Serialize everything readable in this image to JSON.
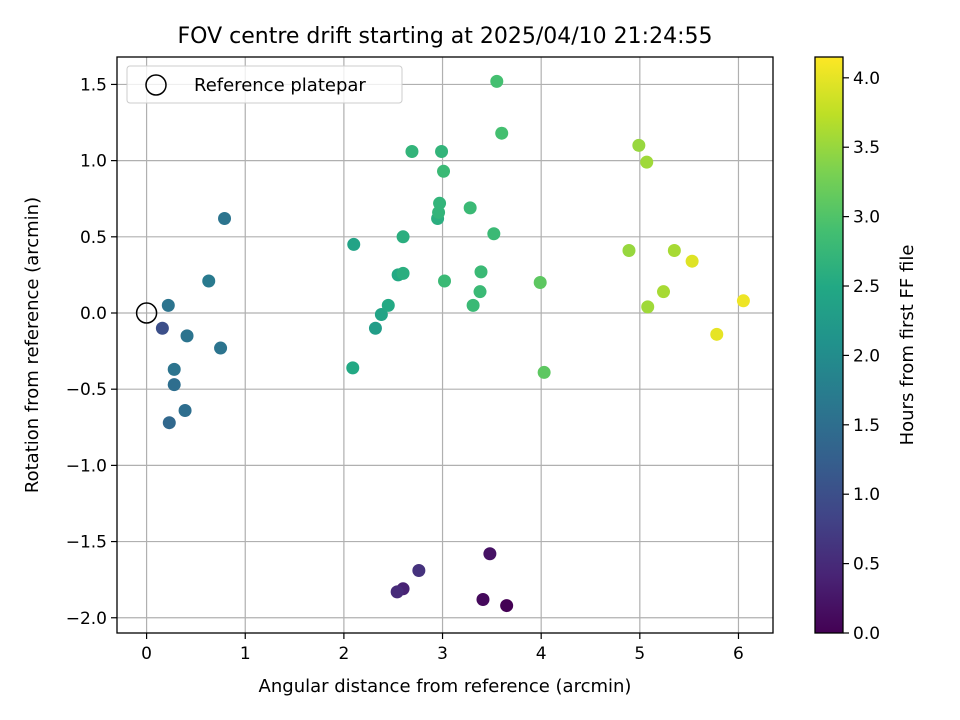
{
  "chart_data": {
    "type": "scatter",
    "title": "FOV centre drift starting at 2025/04/10 21:24:55",
    "xlabel": "Angular distance from reference (arcmin)",
    "ylabel": "Rotation from reference (arcmin)",
    "xlim": [
      -0.3,
      6.35
    ],
    "ylim": [
      -2.1,
      1.68
    ],
    "x_ticks": [
      0,
      1,
      2,
      3,
      4,
      5,
      6
    ],
    "x_tick_labels": [
      "0",
      "1",
      "2",
      "3",
      "4",
      "5",
      "6"
    ],
    "y_ticks": [
      1.5,
      1.0,
      0.5,
      0.0,
      -0.5,
      -1.0,
      -1.5,
      -2.0
    ],
    "y_tick_labels": [
      "1.5",
      "1.0",
      "0.5",
      "0.0",
      "−0.5",
      "−1.0",
      "−1.5",
      "−2.0"
    ],
    "grid": true,
    "legend": {
      "location": "upper left",
      "entries": [
        {
          "label": "Reference platepar",
          "marker": "open-circle",
          "x": 0,
          "y": 0
        }
      ]
    },
    "colorbar": {
      "label": "Hours from first FF file",
      "colormap": "viridis",
      "range": [
        0,
        4.15
      ],
      "ticks": [
        0.0,
        0.5,
        1.0,
        1.5,
        2.0,
        2.5,
        3.0,
        3.5,
        4.0
      ],
      "tick_labels": [
        "0.0",
        "0.5",
        "1.0",
        "1.5",
        "2.0",
        "2.5",
        "3.0",
        "3.5",
        "4.0"
      ]
    },
    "points": [
      {
        "x": 3.65,
        "y": -1.92,
        "hours": 0.0
      },
      {
        "x": 3.41,
        "y": -1.88,
        "hours": 0.1
      },
      {
        "x": 3.48,
        "y": -1.58,
        "hours": 0.2
      },
      {
        "x": 2.6,
        "y": -1.81,
        "hours": 0.4
      },
      {
        "x": 2.54,
        "y": -1.83,
        "hours": 0.5
      },
      {
        "x": 2.76,
        "y": -1.69,
        "hours": 0.6
      },
      {
        "x": 0.16,
        "y": -0.1,
        "hours": 1.0
      },
      {
        "x": 0.23,
        "y": -0.72,
        "hours": 1.4
      },
      {
        "x": 0.28,
        "y": -0.47,
        "hours": 1.5
      },
      {
        "x": 0.39,
        "y": -0.64,
        "hours": 1.5
      },
      {
        "x": 0.22,
        "y": 0.05,
        "hours": 1.6
      },
      {
        "x": 0.28,
        "y": -0.37,
        "hours": 1.6
      },
      {
        "x": 0.41,
        "y": -0.15,
        "hours": 1.6
      },
      {
        "x": 0.75,
        "y": -0.23,
        "hours": 1.6
      },
      {
        "x": 0.79,
        "y": 0.62,
        "hours": 1.6
      },
      {
        "x": 0.63,
        "y": 0.21,
        "hours": 1.7
      },
      {
        "x": 2.32,
        "y": -0.1,
        "hours": 2.3
      },
      {
        "x": 2.38,
        "y": -0.01,
        "hours": 2.4
      },
      {
        "x": 2.1,
        "y": 0.45,
        "hours": 2.4
      },
      {
        "x": 2.09,
        "y": -0.36,
        "hours": 2.5
      },
      {
        "x": 2.45,
        "y": 0.05,
        "hours": 2.5
      },
      {
        "x": 2.55,
        "y": 0.25,
        "hours": 2.5
      },
      {
        "x": 2.6,
        "y": 0.26,
        "hours": 2.6
      },
      {
        "x": 2.6,
        "y": 0.5,
        "hours": 2.6
      },
      {
        "x": 2.95,
        "y": 0.62,
        "hours": 2.6
      },
      {
        "x": 2.96,
        "y": 0.66,
        "hours": 2.7
      },
      {
        "x": 2.97,
        "y": 0.72,
        "hours": 2.7
      },
      {
        "x": 2.69,
        "y": 1.06,
        "hours": 2.7
      },
      {
        "x": 2.99,
        "y": 1.06,
        "hours": 2.7
      },
      {
        "x": 3.01,
        "y": 0.93,
        "hours": 2.8
      },
      {
        "x": 3.02,
        "y": 0.21,
        "hours": 2.8
      },
      {
        "x": 3.28,
        "y": 0.69,
        "hours": 2.8
      },
      {
        "x": 3.31,
        "y": 0.05,
        "hours": 2.8
      },
      {
        "x": 3.38,
        "y": 0.14,
        "hours": 2.8
      },
      {
        "x": 3.39,
        "y": 0.27,
        "hours": 2.8
      },
      {
        "x": 3.52,
        "y": 0.52,
        "hours": 2.8
      },
      {
        "x": 3.55,
        "y": 1.52,
        "hours": 2.9
      },
      {
        "x": 3.6,
        "y": 1.18,
        "hours": 2.9
      },
      {
        "x": 3.99,
        "y": 0.2,
        "hours": 3.1
      },
      {
        "x": 4.03,
        "y": -0.39,
        "hours": 3.1
      },
      {
        "x": 4.89,
        "y": 0.41,
        "hours": 3.5
      },
      {
        "x": 4.99,
        "y": 1.1,
        "hours": 3.5
      },
      {
        "x": 5.07,
        "y": 0.99,
        "hours": 3.55
      },
      {
        "x": 5.08,
        "y": 0.04,
        "hours": 3.55
      },
      {
        "x": 5.24,
        "y": 0.14,
        "hours": 3.6
      },
      {
        "x": 5.35,
        "y": 0.41,
        "hours": 3.6
      },
      {
        "x": 5.53,
        "y": 0.34,
        "hours": 3.95
      },
      {
        "x": 5.78,
        "y": -0.14,
        "hours": 4.0
      },
      {
        "x": 6.05,
        "y": 0.08,
        "hours": 4.05
      }
    ]
  }
}
